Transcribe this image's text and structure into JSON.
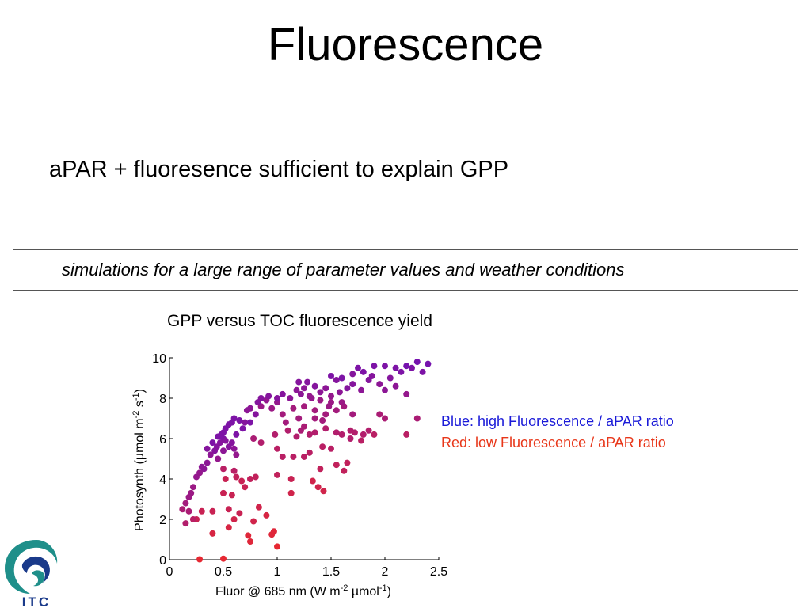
{
  "slide": {
    "title": "Fluorescence",
    "bullet": "aPAR + fluoresence sufficient to explain GPP",
    "caption": "simulations for a large range of parameter values and weather conditions"
  },
  "legend": {
    "blue_text": "Blue: high Fluorescence / aPAR ratio",
    "red_text": "Red: low Fluorescence / aPAR ratio",
    "blue_color": "#1a1ad8",
    "red_color": "#e8371a"
  },
  "logo": {
    "text": "ITC",
    "icon": "itc-logo-icon"
  },
  "chart_data": {
    "type": "scatter",
    "title": "GPP versus TOC fluorescence yield",
    "xlabel": "Fluor @ 685 nm (W m-2 µmol-1)",
    "ylabel": "Photosynth (µmol m-2 s-1)",
    "xlim": [
      0,
      2.5
    ],
    "ylim": [
      0,
      10
    ],
    "xticks": [
      "0",
      "0.5",
      "1",
      "1.5",
      "2",
      "2.5"
    ],
    "yticks": [
      "0",
      "2",
      "4",
      "6",
      "8",
      "10"
    ],
    "grid": false,
    "color_scale": "blue = high Fluorescence / aPAR ratio, red = low Fluorescence / aPAR ratio",
    "points": [
      {
        "x": 0.28,
        "y": 0.02,
        "r": 1.0
      },
      {
        "x": 0.5,
        "y": 0.05,
        "r": 1.0
      },
      {
        "x": 0.75,
        "y": 0.9,
        "r": 0.95
      },
      {
        "x": 0.73,
        "y": 1.2,
        "r": 0.95
      },
      {
        "x": 1.0,
        "y": 0.65,
        "r": 1.0
      },
      {
        "x": 0.95,
        "y": 1.25,
        "r": 0.95
      },
      {
        "x": 0.97,
        "y": 1.4,
        "r": 0.95
      },
      {
        "x": 0.9,
        "y": 2.2,
        "r": 0.9
      },
      {
        "x": 0.4,
        "y": 1.3,
        "r": 0.9
      },
      {
        "x": 0.55,
        "y": 1.6,
        "r": 0.9
      },
      {
        "x": 0.6,
        "y": 2.0,
        "r": 0.85
      },
      {
        "x": 0.78,
        "y": 1.9,
        "r": 0.85
      },
      {
        "x": 0.25,
        "y": 2.0,
        "r": 0.8
      },
      {
        "x": 0.3,
        "y": 2.4,
        "r": 0.8
      },
      {
        "x": 0.4,
        "y": 2.4,
        "r": 0.8
      },
      {
        "x": 0.55,
        "y": 2.5,
        "r": 0.8
      },
      {
        "x": 0.65,
        "y": 2.3,
        "r": 0.8
      },
      {
        "x": 0.83,
        "y": 2.6,
        "r": 0.85
      },
      {
        "x": 0.58,
        "y": 3.2,
        "r": 0.8
      },
      {
        "x": 0.5,
        "y": 3.3,
        "r": 0.8
      },
      {
        "x": 0.7,
        "y": 3.6,
        "r": 0.8
      },
      {
        "x": 0.75,
        "y": 4.0,
        "r": 0.75
      },
      {
        "x": 0.8,
        "y": 4.1,
        "r": 0.75
      },
      {
        "x": 0.52,
        "y": 4.0,
        "r": 0.8
      },
      {
        "x": 0.62,
        "y": 4.1,
        "r": 0.75
      },
      {
        "x": 0.67,
        "y": 3.9,
        "r": 0.8
      },
      {
        "x": 0.6,
        "y": 4.4,
        "r": 0.7
      },
      {
        "x": 0.5,
        "y": 4.5,
        "r": 0.7
      },
      {
        "x": 1.13,
        "y": 3.3,
        "r": 0.85
      },
      {
        "x": 1.13,
        "y": 4.0,
        "r": 0.8
      },
      {
        "x": 1.33,
        "y": 3.9,
        "r": 0.85
      },
      {
        "x": 1.38,
        "y": 3.6,
        "r": 0.85
      },
      {
        "x": 1.43,
        "y": 3.4,
        "r": 0.85
      },
      {
        "x": 1.4,
        "y": 4.5,
        "r": 0.75
      },
      {
        "x": 1.55,
        "y": 4.7,
        "r": 0.75
      },
      {
        "x": 1.62,
        "y": 4.4,
        "r": 0.75
      },
      {
        "x": 1.65,
        "y": 4.8,
        "r": 0.75
      },
      {
        "x": 1.0,
        "y": 4.2,
        "r": 0.75
      },
      {
        "x": 1.05,
        "y": 5.1,
        "r": 0.7
      },
      {
        "x": 1.15,
        "y": 5.1,
        "r": 0.7
      },
      {
        "x": 1.25,
        "y": 5.1,
        "r": 0.7
      },
      {
        "x": 1.3,
        "y": 5.3,
        "r": 0.7
      },
      {
        "x": 1.42,
        "y": 5.6,
        "r": 0.7
      },
      {
        "x": 1.5,
        "y": 5.5,
        "r": 0.7
      },
      {
        "x": 0.85,
        "y": 5.8,
        "r": 0.65
      },
      {
        "x": 0.78,
        "y": 6.0,
        "r": 0.6
      },
      {
        "x": 0.98,
        "y": 6.2,
        "r": 0.65
      },
      {
        "x": 1.1,
        "y": 6.4,
        "r": 0.65
      },
      {
        "x": 1.18,
        "y": 6.1,
        "r": 0.65
      },
      {
        "x": 1.25,
        "y": 6.6,
        "r": 0.6
      },
      {
        "x": 1.35,
        "y": 6.3,
        "r": 0.65
      },
      {
        "x": 1.45,
        "y": 6.5,
        "r": 0.65
      },
      {
        "x": 1.55,
        "y": 6.3,
        "r": 0.65
      },
      {
        "x": 1.6,
        "y": 6.2,
        "r": 0.65
      },
      {
        "x": 1.68,
        "y": 6.0,
        "r": 0.65
      },
      {
        "x": 1.72,
        "y": 6.3,
        "r": 0.65
      },
      {
        "x": 1.8,
        "y": 6.2,
        "r": 0.65
      },
      {
        "x": 1.85,
        "y": 6.4,
        "r": 0.65
      },
      {
        "x": 1.9,
        "y": 6.2,
        "r": 0.7
      },
      {
        "x": 1.68,
        "y": 6.4,
        "r": 0.65
      },
      {
        "x": 1.78,
        "y": 5.9,
        "r": 0.7
      },
      {
        "x": 1.95,
        "y": 7.2,
        "r": 0.6
      },
      {
        "x": 2.0,
        "y": 7.0,
        "r": 0.6
      },
      {
        "x": 2.2,
        "y": 6.2,
        "r": 0.7
      },
      {
        "x": 2.3,
        "y": 7.0,
        "r": 0.6
      },
      {
        "x": 1.2,
        "y": 7.0,
        "r": 0.55
      },
      {
        "x": 1.05,
        "y": 7.2,
        "r": 0.55
      },
      {
        "x": 1.15,
        "y": 7.5,
        "r": 0.55
      },
      {
        "x": 1.25,
        "y": 7.6,
        "r": 0.55
      },
      {
        "x": 1.35,
        "y": 7.4,
        "r": 0.55
      },
      {
        "x": 1.45,
        "y": 7.2,
        "r": 0.55
      },
      {
        "x": 1.55,
        "y": 7.4,
        "r": 0.55
      },
      {
        "x": 1.62,
        "y": 7.6,
        "r": 0.55
      },
      {
        "x": 1.7,
        "y": 7.2,
        "r": 0.55
      },
      {
        "x": 1.4,
        "y": 7.9,
        "r": 0.5
      },
      {
        "x": 1.5,
        "y": 7.8,
        "r": 0.5
      },
      {
        "x": 1.6,
        "y": 7.8,
        "r": 0.5
      },
      {
        "x": 1.3,
        "y": 8.1,
        "r": 0.45
      },
      {
        "x": 1.0,
        "y": 7.8,
        "r": 0.45
      },
      {
        "x": 0.95,
        "y": 7.5,
        "r": 0.5
      },
      {
        "x": 0.85,
        "y": 7.6,
        "r": 0.5
      },
      {
        "x": 0.9,
        "y": 7.9,
        "r": 0.45
      },
      {
        "x": 1.18,
        "y": 8.4,
        "r": 0.4
      },
      {
        "x": 1.25,
        "y": 8.5,
        "r": 0.4
      },
      {
        "x": 1.28,
        "y": 8.8,
        "r": 0.35
      },
      {
        "x": 1.2,
        "y": 8.8,
        "r": 0.35
      },
      {
        "x": 1.35,
        "y": 8.6,
        "r": 0.35
      },
      {
        "x": 1.4,
        "y": 8.3,
        "r": 0.4
      },
      {
        "x": 1.45,
        "y": 8.5,
        "r": 0.4
      },
      {
        "x": 1.5,
        "y": 8.1,
        "r": 0.45
      },
      {
        "x": 1.58,
        "y": 8.3,
        "r": 0.4
      },
      {
        "x": 1.65,
        "y": 8.5,
        "r": 0.35
      },
      {
        "x": 1.55,
        "y": 8.9,
        "r": 0.35
      },
      {
        "x": 1.6,
        "y": 9.0,
        "r": 0.3
      },
      {
        "x": 1.5,
        "y": 9.1,
        "r": 0.3
      },
      {
        "x": 1.7,
        "y": 8.7,
        "r": 0.35
      },
      {
        "x": 1.78,
        "y": 8.4,
        "r": 0.4
      },
      {
        "x": 1.85,
        "y": 8.9,
        "r": 0.35
      },
      {
        "x": 1.95,
        "y": 8.7,
        "r": 0.4
      },
      {
        "x": 2.0,
        "y": 8.4,
        "r": 0.4
      },
      {
        "x": 2.05,
        "y": 9.0,
        "r": 0.35
      },
      {
        "x": 2.1,
        "y": 8.6,
        "r": 0.4
      },
      {
        "x": 2.15,
        "y": 9.3,
        "r": 0.3
      },
      {
        "x": 2.2,
        "y": 8.2,
        "r": 0.45
      },
      {
        "x": 2.25,
        "y": 9.5,
        "r": 0.3
      },
      {
        "x": 2.3,
        "y": 9.8,
        "r": 0.25
      },
      {
        "x": 2.35,
        "y": 9.3,
        "r": 0.3
      },
      {
        "x": 2.4,
        "y": 9.7,
        "r": 0.25
      },
      {
        "x": 2.2,
        "y": 9.6,
        "r": 0.25
      },
      {
        "x": 2.1,
        "y": 9.5,
        "r": 0.3
      },
      {
        "x": 2.0,
        "y": 9.6,
        "r": 0.3
      },
      {
        "x": 1.9,
        "y": 9.6,
        "r": 0.3
      },
      {
        "x": 1.8,
        "y": 9.3,
        "r": 0.3
      },
      {
        "x": 1.75,
        "y": 9.5,
        "r": 0.3
      },
      {
        "x": 1.7,
        "y": 9.2,
        "r": 0.35
      },
      {
        "x": 1.88,
        "y": 9.1,
        "r": 0.35
      },
      {
        "x": 1.05,
        "y": 8.2,
        "r": 0.35
      },
      {
        "x": 1.0,
        "y": 8.0,
        "r": 0.35
      },
      {
        "x": 0.92,
        "y": 8.1,
        "r": 0.35
      },
      {
        "x": 0.85,
        "y": 8.0,
        "r": 0.35
      },
      {
        "x": 0.82,
        "y": 7.8,
        "r": 0.35
      },
      {
        "x": 0.75,
        "y": 7.5,
        "r": 0.4
      },
      {
        "x": 0.72,
        "y": 7.4,
        "r": 0.4
      },
      {
        "x": 0.7,
        "y": 6.8,
        "r": 0.35
      },
      {
        "x": 0.65,
        "y": 6.9,
        "r": 0.3
      },
      {
        "x": 0.6,
        "y": 7.0,
        "r": 0.3
      },
      {
        "x": 0.58,
        "y": 6.8,
        "r": 0.3
      },
      {
        "x": 0.55,
        "y": 6.7,
        "r": 0.3
      },
      {
        "x": 0.52,
        "y": 6.5,
        "r": 0.3
      },
      {
        "x": 0.5,
        "y": 6.3,
        "r": 0.3
      },
      {
        "x": 0.48,
        "y": 6.2,
        "r": 0.3
      },
      {
        "x": 0.45,
        "y": 6.1,
        "r": 0.3
      },
      {
        "x": 0.5,
        "y": 6.0,
        "r": 0.3
      },
      {
        "x": 0.52,
        "y": 5.9,
        "r": 0.35
      },
      {
        "x": 0.47,
        "y": 5.8,
        "r": 0.35
      },
      {
        "x": 0.44,
        "y": 5.6,
        "r": 0.35
      },
      {
        "x": 0.55,
        "y": 5.6,
        "r": 0.35
      },
      {
        "x": 0.6,
        "y": 5.5,
        "r": 0.4
      },
      {
        "x": 0.62,
        "y": 5.2,
        "r": 0.45
      },
      {
        "x": 0.5,
        "y": 5.4,
        "r": 0.4
      },
      {
        "x": 0.42,
        "y": 5.4,
        "r": 0.35
      },
      {
        "x": 0.38,
        "y": 5.2,
        "r": 0.4
      },
      {
        "x": 0.45,
        "y": 5.0,
        "r": 0.45
      },
      {
        "x": 0.35,
        "y": 4.8,
        "r": 0.4
      },
      {
        "x": 0.32,
        "y": 4.5,
        "r": 0.4
      },
      {
        "x": 0.3,
        "y": 4.6,
        "r": 0.4
      },
      {
        "x": 0.28,
        "y": 4.3,
        "r": 0.45
      },
      {
        "x": 0.25,
        "y": 4.1,
        "r": 0.45
      },
      {
        "x": 0.22,
        "y": 3.6,
        "r": 0.5
      },
      {
        "x": 0.2,
        "y": 3.3,
        "r": 0.5
      },
      {
        "x": 0.18,
        "y": 3.1,
        "r": 0.5
      },
      {
        "x": 0.15,
        "y": 2.8,
        "r": 0.55
      },
      {
        "x": 0.12,
        "y": 2.5,
        "r": 0.6
      },
      {
        "x": 0.18,
        "y": 2.4,
        "r": 0.6
      },
      {
        "x": 0.15,
        "y": 1.8,
        "r": 0.65
      },
      {
        "x": 0.22,
        "y": 2.0,
        "r": 0.7
      },
      {
        "x": 0.68,
        "y": 6.5,
        "r": 0.3
      },
      {
        "x": 0.75,
        "y": 6.8,
        "r": 0.3
      },
      {
        "x": 0.8,
        "y": 7.2,
        "r": 0.35
      },
      {
        "x": 0.62,
        "y": 6.2,
        "r": 0.3
      },
      {
        "x": 0.58,
        "y": 5.8,
        "r": 0.35
      },
      {
        "x": 0.4,
        "y": 5.8,
        "r": 0.3
      },
      {
        "x": 0.35,
        "y": 5.5,
        "r": 0.35
      },
      {
        "x": 1.12,
        "y": 8.0,
        "r": 0.4
      },
      {
        "x": 1.22,
        "y": 8.2,
        "r": 0.4
      },
      {
        "x": 1.32,
        "y": 8.0,
        "r": 0.45
      },
      {
        "x": 1.35,
        "y": 7.0,
        "r": 0.55
      },
      {
        "x": 1.42,
        "y": 6.9,
        "r": 0.55
      },
      {
        "x": 1.48,
        "y": 7.6,
        "r": 0.5
      },
      {
        "x": 1.3,
        "y": 6.2,
        "r": 0.65
      },
      {
        "x": 1.22,
        "y": 6.4,
        "r": 0.6
      },
      {
        "x": 1.08,
        "y": 6.8,
        "r": 0.55
      },
      {
        "x": 1.0,
        "y": 5.5,
        "r": 0.7
      }
    ]
  }
}
